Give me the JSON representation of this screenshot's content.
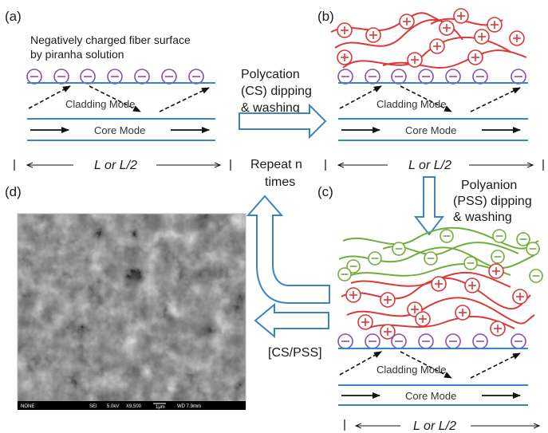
{
  "colors": {
    "fiber_line": "#3b84c4",
    "anion_circle": "#8a4fb0",
    "polycation": "#d93a3a",
    "polyanion": "#6fae3a",
    "arrow_outline": "#3b84c4"
  },
  "panels": {
    "a": {
      "label": "(a)",
      "caption_line1": "Negatively charged fiber surface",
      "caption_line2": "by piranha solution",
      "cladding_mode": "Cladding Mode",
      "core_mode": "Core Mode",
      "length_label": "L or L/2"
    },
    "b": {
      "label": "(b)",
      "step_line1": "Polycation",
      "step_line2": "(CS) dipping",
      "step_line3": "& washing",
      "cladding_mode": "Cladding Mode",
      "core_mode": "Core Mode",
      "length_label": "L or L/2"
    },
    "c": {
      "label": "(c)",
      "step_line1": "Polyanion",
      "step_line2": "(PSS) dipping",
      "step_line3": "& washing",
      "cladding_mode": "Cladding Mode",
      "core_mode": "Core Mode",
      "length_label": "L or L/2"
    },
    "d": {
      "label": "(d)",
      "sem_none": "NONE",
      "sem_detector": "SEI",
      "sem_kv": "5.0kV",
      "sem_mag": "X9,500",
      "sem_scale": "1μm",
      "sem_wd": "WD 7.9mm"
    }
  },
  "repeat_line1": "Repeat n",
  "repeat_line2": "times",
  "bilayer_label": "[CS/PSS]",
  "charge_plus": "+",
  "charge_minus": "−"
}
